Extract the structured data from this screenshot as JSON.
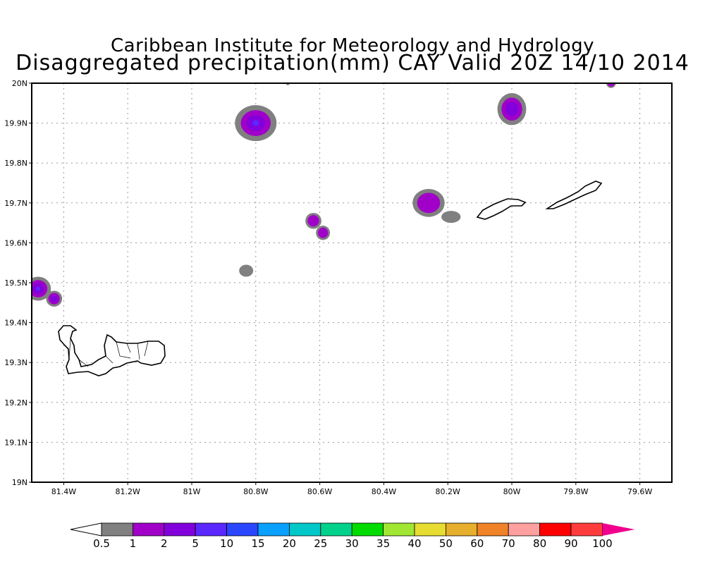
{
  "title_line1": "Caribbean Institute for Meteorology and Hydrology",
  "title_line2": "Disaggregated precipitation(mm) CAY Valid 20Z 14/10 2014",
  "map": {
    "lon_range": [
      -81.5,
      -79.5
    ],
    "lat_range": [
      19.0,
      20.0
    ],
    "lat_ticks": [
      {
        "v": 20.0,
        "label": "20N"
      },
      {
        "v": 19.9,
        "label": "19.9N"
      },
      {
        "v": 19.8,
        "label": "19.8N"
      },
      {
        "v": 19.7,
        "label": "19.7N"
      },
      {
        "v": 19.6,
        "label": "19.6N"
      },
      {
        "v": 19.5,
        "label": "19.5N"
      },
      {
        "v": 19.4,
        "label": "19.4N"
      },
      {
        "v": 19.3,
        "label": "19.3N"
      },
      {
        "v": 19.2,
        "label": "19.2N"
      },
      {
        "v": 19.1,
        "label": "19.1N"
      },
      {
        "v": 19.0,
        "label": "19N"
      }
    ],
    "lon_ticks": [
      {
        "v": -81.4,
        "label": "81.4W"
      },
      {
        "v": -81.2,
        "label": "81.2W"
      },
      {
        "v": -81.0,
        "label": "81W"
      },
      {
        "v": -80.8,
        "label": "80.8W"
      },
      {
        "v": -80.6,
        "label": "80.6W"
      },
      {
        "v": -80.4,
        "label": "80.4W"
      },
      {
        "v": -80.2,
        "label": "80.2W"
      },
      {
        "v": -80.0,
        "label": "80W"
      },
      {
        "v": -79.8,
        "label": "79.8W"
      },
      {
        "v": -79.6,
        "label": "79.6W"
      }
    ],
    "precip_cells": [
      {
        "lon": -80.8,
        "lat": 19.9,
        "rlon": 0.065,
        "rlat": 0.045,
        "max_class": 3
      },
      {
        "lon": -80.0,
        "lat": 19.935,
        "rlon": 0.045,
        "rlat": 0.04,
        "max_class": 2
      },
      {
        "lon": -81.48,
        "lat": 19.485,
        "rlon": 0.04,
        "rlat": 0.03,
        "max_class": 3
      },
      {
        "lon": -81.43,
        "lat": 19.46,
        "rlon": 0.025,
        "rlat": 0.02,
        "max_class": 2
      },
      {
        "lon": -80.62,
        "lat": 19.655,
        "rlon": 0.025,
        "rlat": 0.02,
        "max_class": 1
      },
      {
        "lon": -80.59,
        "lat": 19.625,
        "rlon": 0.022,
        "rlat": 0.018,
        "max_class": 1
      },
      {
        "lon": -80.26,
        "lat": 19.7,
        "rlon": 0.05,
        "rlat": 0.035,
        "max_class": 1
      },
      {
        "lon": -80.19,
        "lat": 19.665,
        "rlon": 0.03,
        "rlat": 0.015,
        "max_class": 0
      },
      {
        "lon": -80.83,
        "lat": 19.53,
        "rlon": 0.022,
        "rlat": 0.015,
        "max_class": 0
      },
      {
        "lon": -79.69,
        "lat": 20.0,
        "rlon": 0.015,
        "rlat": 0.012,
        "max_class": 1
      },
      {
        "lon": -80.7,
        "lat": 20.0,
        "rlon": 0.006,
        "rlat": 0.005,
        "max_class": 0
      }
    ]
  },
  "colorbar": {
    "labels": [
      "0.5",
      "1",
      "2",
      "5",
      "10",
      "15",
      "20",
      "25",
      "30",
      "35",
      "40",
      "50",
      "60",
      "70",
      "80",
      "90",
      "100"
    ],
    "colors": [
      "#ffffff",
      "#808080",
      "#a000c8",
      "#8200dc",
      "#5a28ff",
      "#2a46ff",
      "#0aa0ff",
      "#00c8c8",
      "#00d28c",
      "#00dc00",
      "#a0e632",
      "#e6dc32",
      "#e6af2d",
      "#f08228",
      "#ffa0a0",
      "#ff0000",
      "#ff3c3c",
      "#f0008c"
    ]
  }
}
